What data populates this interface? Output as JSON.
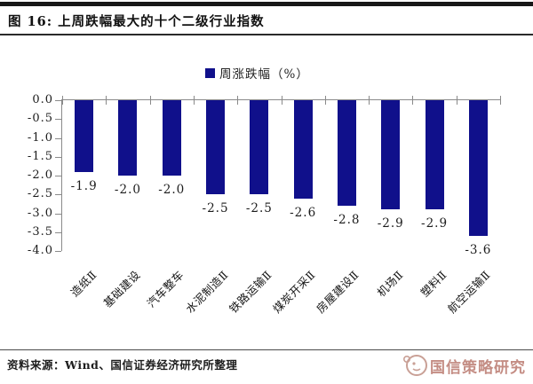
{
  "header": {
    "title": "图 16: 上周跌幅最大的十个二级行业指数"
  },
  "chart_data": {
    "type": "bar",
    "title": "上周跌幅最大的十个二级行业指数",
    "legend": [
      "周涨跌幅（%）"
    ],
    "categories": [
      "造纸Ⅱ",
      "基础建设",
      "汽车整车",
      "水泥制造Ⅱ",
      "铁路运输Ⅱ",
      "煤炭开采Ⅱ",
      "房屋建设Ⅱ",
      "机场Ⅱ",
      "塑料Ⅱ",
      "航空运输Ⅱ"
    ],
    "values": [
      -1.9,
      -2.0,
      -2.0,
      -2.5,
      -2.5,
      -2.6,
      -2.8,
      -2.9,
      -2.9,
      -3.6
    ],
    "value_labels": [
      "-1.9",
      "-2.0",
      "-2.0",
      "-2.5",
      "-2.5",
      "-2.6",
      "-2.8",
      "-2.9",
      "-2.9",
      "-3.6"
    ],
    "ylim": [
      -4.0,
      0.0
    ],
    "yticks": [
      "0.0",
      "-0.5",
      "-1.0",
      "-1.5",
      "-2.0",
      "-2.5",
      "-3.0",
      "-3.5",
      "-4.0"
    ],
    "xlabel": "",
    "ylabel": "",
    "grid": false,
    "legend_position": "top-center",
    "bar_color": "#10108B",
    "axis_color": "#8a8a8a"
  },
  "footer": {
    "source": "资料来源：Wind、国信证券经济研究所整理",
    "badge": "国信策略研究",
    "badge_color": "#c48d84"
  }
}
